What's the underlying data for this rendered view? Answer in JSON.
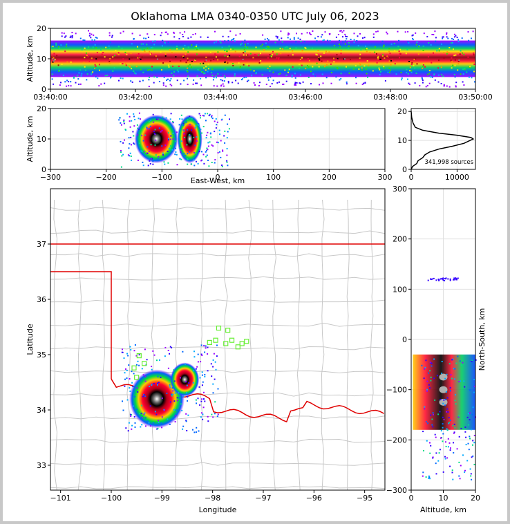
{
  "chart_data": {
    "title": "Oklahoma LMA 0340-0350 UTC July 06, 2023",
    "panels": [
      {
        "id": "time_altitude",
        "type": "heatmap",
        "xlabel": "",
        "ylabel": "Altitude, km",
        "xticks": [
          "03:40:00",
          "03:42:00",
          "03:44:00",
          "03:46:00",
          "03:48:00",
          "03:50:00"
        ],
        "yticks": [
          0,
          10,
          20
        ],
        "ylim": [
          0,
          20
        ]
      },
      {
        "id": "ew_altitude",
        "type": "heatmap",
        "xlabel": "East-West, km",
        "ylabel": "Altitude, km",
        "xlim": [
          -300,
          300
        ],
        "ylim": [
          0,
          20
        ],
        "xticks": [
          -300,
          -200,
          -100,
          0,
          100,
          200,
          300
        ],
        "yticks": [
          0,
          10,
          20
        ],
        "cells": [
          {
            "cx": -110,
            "alt": 10,
            "rx": 28,
            "ralt": 5
          },
          {
            "cx": -50,
            "alt": 10,
            "rx": 16,
            "ralt": 5
          }
        ]
      },
      {
        "id": "altitude_histogram",
        "type": "line",
        "annotation": "341,998 sources",
        "xlim": [
          0,
          14000
        ],
        "ylim": [
          0,
          21
        ],
        "xticks": [
          0,
          10000
        ],
        "yticks": [
          0,
          10,
          20
        ],
        "x": [
          0,
          300,
          1200,
          1500,
          2500,
          3000,
          4000,
          6000,
          9000,
          11500,
          13500,
          13000,
          10000,
          6000,
          2500,
          900,
          400,
          100,
          0
        ],
        "y": [
          0,
          1,
          2,
          3,
          4,
          5,
          6,
          7,
          8,
          9,
          10.5,
          11,
          11.8,
          12.5,
          13.5,
          14.5,
          16,
          18,
          20
        ]
      },
      {
        "id": "plan_view",
        "type": "map",
        "xlabel": "Longitude",
        "ylabel": "Latitude",
        "xlim": [
          -101.2,
          -94.6
        ],
        "ylim": [
          32.55,
          38.0
        ],
        "xticks": [
          -101,
          -100,
          -99,
          -98,
          -97,
          -96,
          -95
        ],
        "yticks": [
          33,
          34,
          35,
          36,
          37
        ],
        "state_border_color": "#e00000",
        "station_color": "#66ee33",
        "stations": [
          {
            "lon": -99.45,
            "lat": 34.98
          },
          {
            "lon": -99.55,
            "lat": 34.76
          },
          {
            "lon": -99.35,
            "lat": 34.84
          },
          {
            "lon": -99.5,
            "lat": 34.59
          },
          {
            "lon": -97.88,
            "lat": 35.48
          },
          {
            "lon": -97.7,
            "lat": 35.44
          },
          {
            "lon": -98.06,
            "lat": 35.22
          },
          {
            "lon": -97.94,
            "lat": 35.26
          },
          {
            "lon": -97.74,
            "lat": 35.2
          },
          {
            "lon": -97.62,
            "lat": 35.26
          },
          {
            "lon": -97.5,
            "lat": 35.14
          },
          {
            "lon": -97.42,
            "lat": 35.2
          },
          {
            "lon": -97.33,
            "lat": 35.24
          }
        ],
        "cells": [
          {
            "lon": -99.1,
            "lat": 34.2,
            "rlon": 0.42,
            "rlat": 0.38
          },
          {
            "lon": -98.55,
            "lat": 34.55,
            "rlon": 0.22,
            "rlat": 0.22
          }
        ]
      },
      {
        "id": "altitude_ns",
        "type": "heatmap",
        "xlabel": "Altitude, km",
        "ylabel": "North-South, km",
        "xlim": [
          0,
          20
        ],
        "ylim": [
          -300,
          300
        ],
        "xticks": [
          0,
          10,
          20
        ],
        "yticks": [
          -300,
          -200,
          -100,
          0,
          100,
          200,
          300
        ]
      }
    ]
  }
}
